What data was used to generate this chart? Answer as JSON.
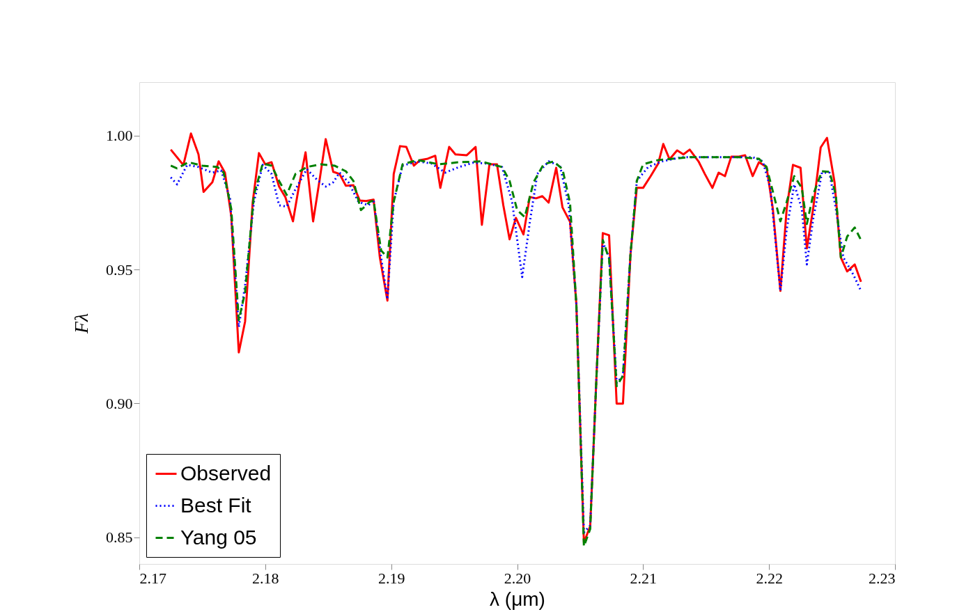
{
  "chart_data": {
    "type": "line",
    "xlabel": "λ (μm)",
    "ylabel": "Fλ",
    "xlim": [
      2.17,
      2.23
    ],
    "ylim": [
      0.84,
      1.02
    ],
    "xticks": [
      2.17,
      2.18,
      2.19,
      {
        "value": 2.2,
        "label": "2.20"
      },
      2.21,
      2.22,
      2.23
    ],
    "yticks": [
      0.85,
      {
        "value": 0.9,
        "label": "0.90"
      },
      0.95,
      {
        "value": 1.0,
        "label": "1.00"
      }
    ],
    "grid": false,
    "legend": "bottom left",
    "marker": "none",
    "series": [
      {
        "name": "Observed",
        "color": "#ff0000",
        "line_style": "solid",
        "x": [
          2.1725,
          2.1735,
          2.1741,
          2.1747,
          2.1751,
          2.1758,
          2.1763,
          2.1768,
          2.1773,
          2.1779,
          2.1784,
          2.179,
          2.1795,
          2.18,
          2.1805,
          2.1811,
          2.1816,
          2.1822,
          2.1827,
          2.1832,
          2.1838,
          2.1843,
          2.1848,
          2.1854,
          2.1859,
          2.1864,
          2.187,
          2.1875,
          2.188,
          2.1886,
          2.1891,
          2.1897,
          2.1902,
          2.1907,
          2.1912,
          2.1918,
          2.1923,
          2.1929,
          2.1935,
          2.1939,
          2.1946,
          2.1951,
          2.196,
          2.1967,
          2.1972,
          2.1978,
          2.1984,
          2.1989,
          2.1994,
          2.1999,
          2.2005,
          2.201,
          2.2015,
          2.202,
          2.2025,
          2.2031,
          2.2036,
          2.2042,
          2.2047,
          2.2053,
          2.2058,
          2.2063,
          2.2068,
          2.2073,
          2.2079,
          2.2084,
          2.209,
          2.2095,
          2.21,
          2.2106,
          2.2112,
          2.2116,
          2.2121,
          2.2127,
          2.2132,
          2.2137,
          2.2144,
          2.2149,
          2.2155,
          2.216,
          2.2165,
          2.217,
          2.2176,
          2.2181,
          2.2187,
          2.2192,
          2.2198,
          2.2203,
          2.2209,
          2.2214,
          2.2219,
          2.2225,
          2.223,
          2.2235,
          2.2241,
          2.2246,
          2.2252,
          2.2257,
          2.2262,
          2.2268,
          2.2273
        ],
        "values": [
          0.9948,
          0.989,
          1.0008,
          0.993,
          0.979,
          0.9826,
          0.9904,
          0.9862,
          0.97,
          0.919,
          0.9306,
          0.975,
          0.9935,
          0.9893,
          0.9901,
          0.981,
          0.977,
          0.968,
          0.9818,
          0.9938,
          0.968,
          0.983,
          0.9987,
          0.9865,
          0.9857,
          0.9813,
          0.9815,
          0.9758,
          0.9756,
          0.9761,
          0.9545,
          0.9384,
          0.9857,
          0.9961,
          0.9958,
          0.9888,
          0.9909,
          0.9914,
          0.9925,
          0.9805,
          0.9958,
          0.993,
          0.9927,
          0.9958,
          0.9667,
          0.9893,
          0.9893,
          0.974,
          0.9613,
          0.9693,
          0.9631,
          0.9771,
          0.9766,
          0.9774,
          0.975,
          0.988,
          0.9732,
          0.9678,
          0.9371,
          0.848,
          0.8541,
          0.9103,
          0.9636,
          0.9628,
          0.8999,
          0.8999,
          0.9558,
          0.9805,
          0.9805,
          0.9849,
          0.9896,
          0.9969,
          0.9912,
          0.9945,
          0.993,
          0.9948,
          0.9904,
          0.9857,
          0.9805,
          0.9862,
          0.9849,
          0.9922,
          0.9922,
          0.9927,
          0.9849,
          0.9901,
          0.9883,
          0.9727,
          0.942,
          0.9727,
          0.9891,
          0.988,
          0.9579,
          0.9727,
          0.9956,
          0.9992,
          0.9826,
          0.9545,
          0.9493,
          0.9519,
          0.9454
        ]
      },
      {
        "name": "Best Fit",
        "color": "#0000ff",
        "line_style": "dotted",
        "x": [
          2.1725,
          2.173,
          2.1738,
          2.1747,
          2.1758,
          2.1765,
          2.1772,
          2.1779,
          2.1784,
          2.1791,
          2.1798,
          2.1805,
          2.1811,
          2.1817,
          2.1824,
          2.1833,
          2.1841,
          2.1848,
          2.1854,
          2.1859,
          2.1866,
          2.1874,
          2.1882,
          2.1886,
          2.1892,
          2.1897,
          2.1902,
          2.1909,
          2.1921,
          2.1932,
          2.1943,
          2.1954,
          2.1965,
          2.1976,
          2.1988,
          2.1996,
          2.2004,
          2.201,
          2.2016,
          2.2025,
          2.2034,
          2.2041,
          2.2047,
          2.2053,
          2.2058,
          2.2063,
          2.2068,
          2.2073,
          2.2079,
          2.2084,
          2.209,
          2.2095,
          2.2104,
          2.2115,
          2.2131,
          2.2164,
          2.2187,
          2.2195,
          2.2201,
          2.2209,
          2.2214,
          2.222,
          2.2226,
          2.223,
          2.2235,
          2.2242,
          2.2248,
          2.2253,
          2.2259,
          2.2267,
          2.2273
        ],
        "values": [
          0.9844,
          0.9818,
          0.9891,
          0.9883,
          0.9862,
          0.987,
          0.9766,
          0.9285,
          0.9441,
          0.9753,
          0.9891,
          0.9857,
          0.974,
          0.9735,
          0.98,
          0.9875,
          0.9836,
          0.981,
          0.9826,
          0.9862,
          0.9826,
          0.9753,
          0.974,
          0.9761,
          0.9545,
          0.9389,
          0.9753,
          0.9888,
          0.9904,
          0.9896,
          0.9862,
          0.9883,
          0.9899,
          0.9896,
          0.9883,
          0.9753,
          0.9472,
          0.9675,
          0.9857,
          0.9904,
          0.9888,
          0.974,
          0.9371,
          0.8518,
          0.8544,
          0.9103,
          0.9602,
          0.9545,
          0.9077,
          0.9103,
          0.9558,
          0.9831,
          0.9883,
          0.9904,
          0.992,
          0.992,
          0.992,
          0.9904,
          0.9805,
          0.942,
          0.965,
          0.9818,
          0.9727,
          0.9519,
          0.9688,
          0.9862,
          0.9862,
          0.9727,
          0.9545,
          0.948,
          0.942
        ]
      },
      {
        "name": "Yang 05",
        "color": "#008000",
        "line_style": "dashed",
        "x": [
          2.1725,
          2.173,
          2.1739,
          2.175,
          2.1762,
          2.1767,
          2.1773,
          2.1779,
          2.1784,
          2.1791,
          2.1798,
          2.1805,
          2.1811,
          2.1817,
          2.1824,
          2.1833,
          2.1844,
          2.1855,
          2.1864,
          2.187,
          2.1876,
          2.1883,
          2.1886,
          2.1892,
          2.1897,
          2.1902,
          2.1909,
          2.1921,
          2.1938,
          2.1954,
          2.1971,
          2.1988,
          2.1994,
          2.2,
          2.2006,
          2.2013,
          2.2021,
          2.2029,
          2.2036,
          2.2042,
          2.2047,
          2.2053,
          2.2058,
          2.2063,
          2.2068,
          2.2073,
          2.2079,
          2.2084,
          2.209,
          2.2095,
          2.21,
          2.2112,
          2.2137,
          2.2176,
          2.2192,
          2.2198,
          2.2203,
          2.2209,
          2.2214,
          2.222,
          2.2226,
          2.223,
          2.2235,
          2.2242,
          2.2248,
          2.2253,
          2.2257,
          2.2262,
          2.2268,
          2.2273
        ],
        "values": [
          0.9888,
          0.9878,
          0.9901,
          0.9888,
          0.9883,
          0.9862,
          0.9727,
          0.9311,
          0.9415,
          0.9779,
          0.9896,
          0.9888,
          0.9831,
          0.9779,
          0.9857,
          0.9883,
          0.9893,
          0.9888,
          0.9867,
          0.9831,
          0.9722,
          0.9753,
          0.9758,
          0.9571,
          0.9545,
          0.9753,
          0.9893,
          0.9909,
          0.9893,
          0.9901,
          0.9904,
          0.9883,
          0.9831,
          0.9722,
          0.9696,
          0.9826,
          0.9893,
          0.9904,
          0.9875,
          0.9748,
          0.9371,
          0.8466,
          0.8531,
          0.9103,
          0.961,
          0.954,
          0.9064,
          0.9103,
          0.9558,
          0.9831,
          0.9893,
          0.9909,
          0.992,
          0.992,
          0.9914,
          0.9883,
          0.9792,
          0.968,
          0.9753,
          0.9849,
          0.9805,
          0.967,
          0.9779,
          0.9867,
          0.9865,
          0.9779,
          0.9545,
          0.9623,
          0.9657,
          0.961
        ]
      }
    ]
  }
}
